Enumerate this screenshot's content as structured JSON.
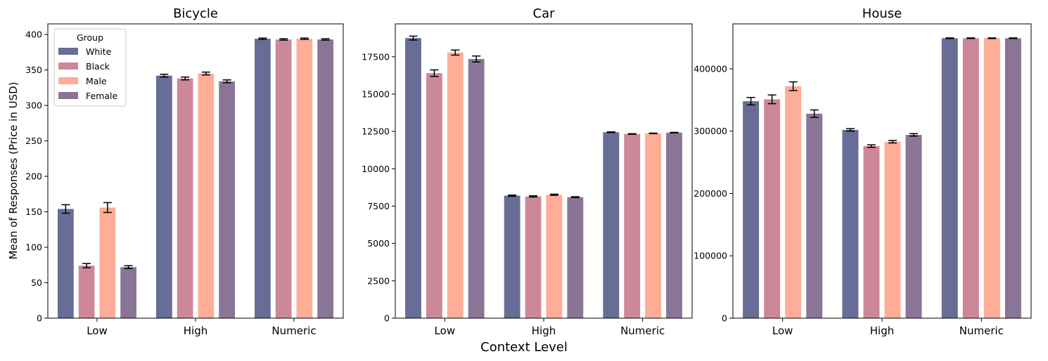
{
  "figure": {
    "shared_xlabel": "Context Level",
    "shared_ylabel": "Mean of Responses (Price in USD)"
  },
  "legend": {
    "title": "Group",
    "placement": "upper-left of first panel",
    "entries": [
      "White",
      "Black",
      "Male",
      "Female"
    ]
  },
  "colors": {
    "White": "#676d96",
    "Black": "#cc8899",
    "Male": "#ffad97",
    "Female": "#8a7597",
    "errorbar": "#000000"
  },
  "chart_data": [
    {
      "type": "bar",
      "title": "Bicycle",
      "categories": [
        "Low",
        "High",
        "Numeric"
      ],
      "ylim": [
        0,
        415
      ],
      "yticks": [
        "0",
        "50",
        "100",
        "150",
        "200",
        "250",
        "300",
        "350",
        "400"
      ],
      "series": [
        {
          "name": "White",
          "values": [
            154,
            342,
            394
          ],
          "errors": [
            6,
            2,
            1
          ]
        },
        {
          "name": "Black",
          "values": [
            74,
            338,
            393
          ],
          "errors": [
            3,
            2,
            1
          ]
        },
        {
          "name": "Male",
          "values": [
            156,
            345,
            394
          ],
          "errors": [
            7,
            2,
            1
          ]
        },
        {
          "name": "Female",
          "values": [
            72,
            334,
            393
          ],
          "errors": [
            2,
            2,
            1
          ]
        }
      ]
    },
    {
      "type": "bar",
      "title": "Car",
      "categories": [
        "Low",
        "High",
        "Numeric"
      ],
      "ylim": [
        0,
        19700
      ],
      "yticks": [
        "0",
        "2500",
        "5000",
        "7500",
        "10000",
        "12500",
        "15000",
        "17500"
      ],
      "series": [
        {
          "name": "White",
          "values": [
            18750,
            8200,
            12450
          ],
          "errors": [
            130,
            40,
            20
          ]
        },
        {
          "name": "Black",
          "values": [
            16400,
            8150,
            12330
          ],
          "errors": [
            220,
            40,
            20
          ]
        },
        {
          "name": "Male",
          "values": [
            17780,
            8260,
            12370
          ],
          "errors": [
            170,
            40,
            20
          ]
        },
        {
          "name": "Female",
          "values": [
            17350,
            8100,
            12420
          ],
          "errors": [
            200,
            30,
            20
          ]
        }
      ]
    },
    {
      "type": "bar",
      "title": "House",
      "categories": [
        "Low",
        "High",
        "Numeric"
      ],
      "ylim": [
        0,
        472000
      ],
      "yticks": [
        "0",
        "100000",
        "200000",
        "300000",
        "400000"
      ],
      "series": [
        {
          "name": "White",
          "values": [
            348000,
            302000,
            449000
          ],
          "errors": [
            6000,
            2000,
            500
          ]
        },
        {
          "name": "Black",
          "values": [
            351000,
            276000,
            449000
          ],
          "errors": [
            7000,
            2000,
            500
          ]
        },
        {
          "name": "Male",
          "values": [
            372000,
            283000,
            449000
          ],
          "errors": [
            7000,
            2000,
            500
          ]
        },
        {
          "name": "Female",
          "values": [
            328000,
            294000,
            449000
          ],
          "errors": [
            6000,
            2000,
            500
          ]
        }
      ]
    }
  ]
}
